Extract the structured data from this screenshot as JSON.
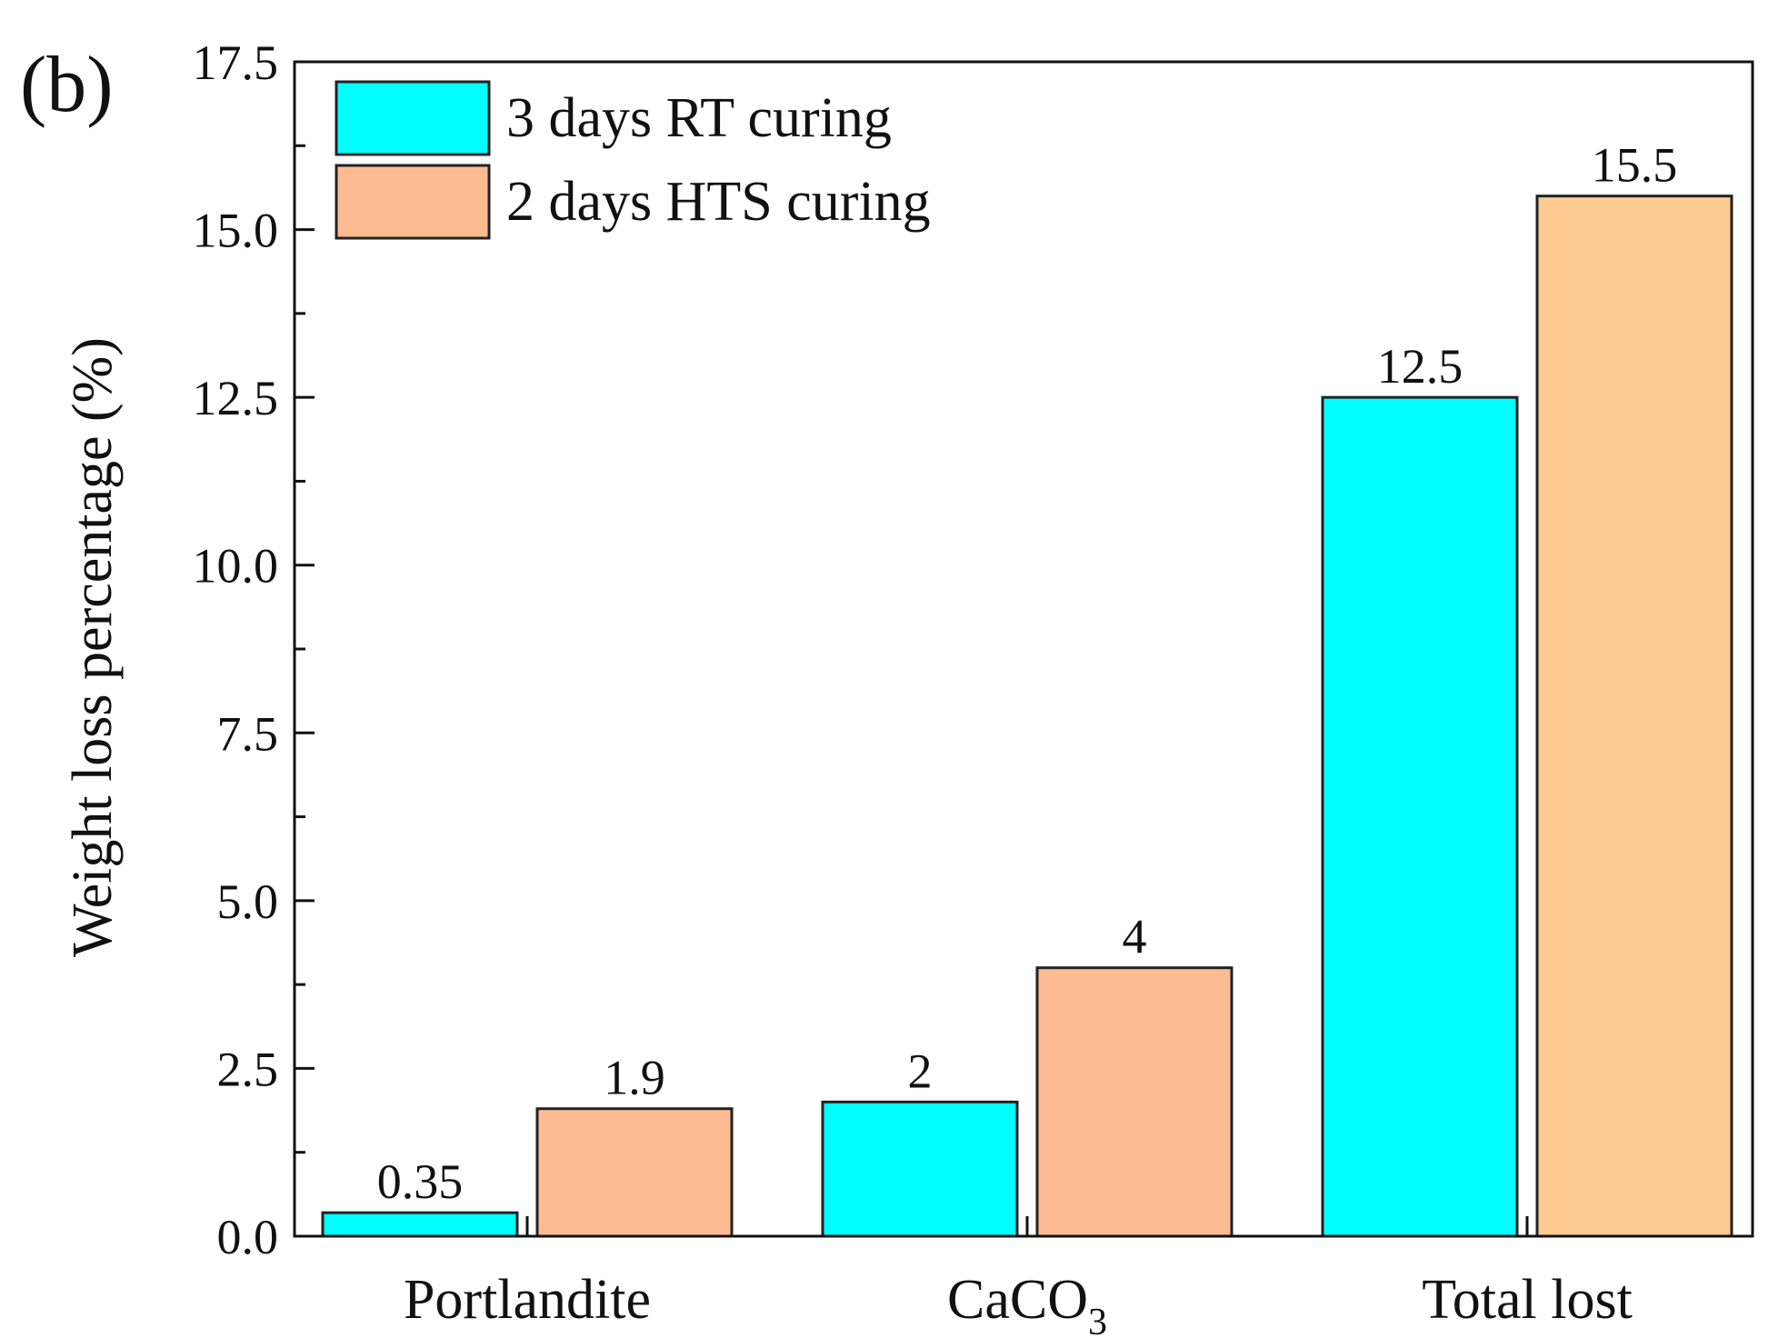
{
  "panel_label": "(b)",
  "chart_data": {
    "type": "bar",
    "title": "",
    "xlabel": "",
    "ylabel": "Weight loss percentage (%)",
    "ylim": [
      0,
      17.5
    ],
    "yticks": [
      "0.0",
      "2.5",
      "5.0",
      "7.5",
      "10.0",
      "12.5",
      "15.0",
      "17.5"
    ],
    "categories": [
      {
        "main": "Portlandite",
        "sub": ""
      },
      {
        "main": "CaCO",
        "sub": "3"
      },
      {
        "main": "Total lost",
        "sub": ""
      }
    ],
    "series": [
      {
        "name": "3 days RT curing",
        "color": "#00ffff",
        "values": [
          0.35,
          2,
          12.5
        ],
        "labels": [
          "0.35",
          "2",
          "12.5"
        ]
      },
      {
        "name": "2 days HTS curing",
        "color_by_category": [
          "#fdbb91",
          "#fdbb91",
          "#fdcb90"
        ],
        "color": "#fdbb91",
        "values": [
          1.9,
          4,
          15.5
        ],
        "labels": [
          "1.9",
          "4",
          "15.5"
        ]
      }
    ],
    "legend_position": "top-left",
    "grid": false
  }
}
